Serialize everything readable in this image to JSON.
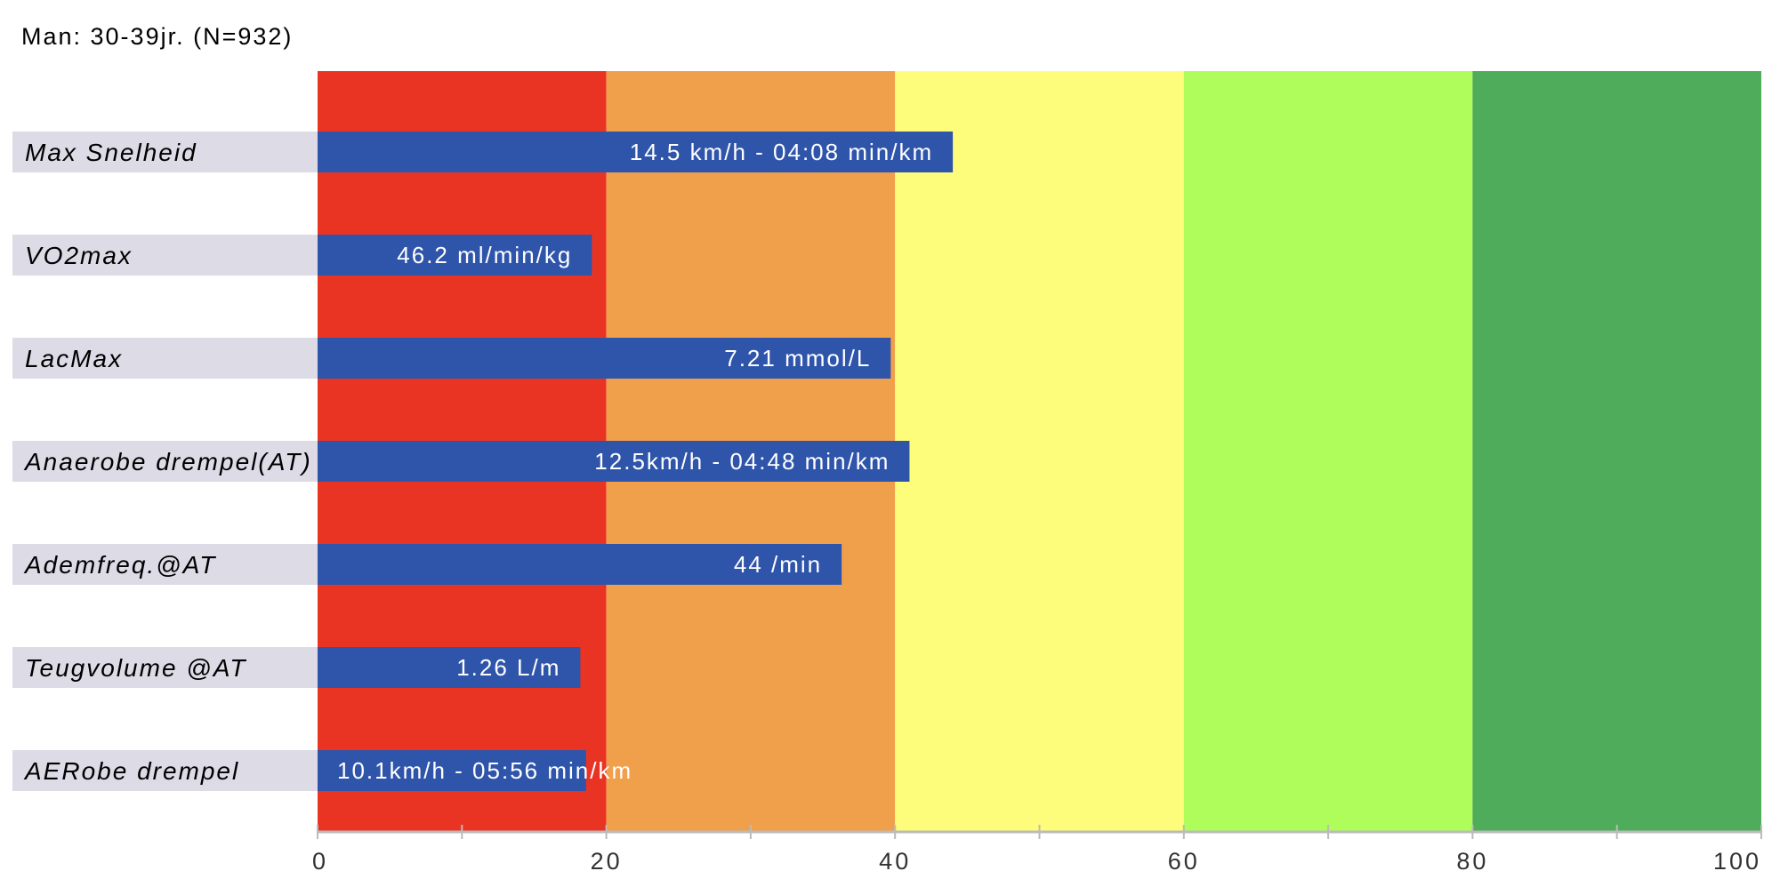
{
  "chart_data": {
    "type": "bar",
    "orientation": "horizontal",
    "title": "Man: 30-39jr. (N=932)",
    "xlabel": "",
    "ylabel": "",
    "xlim": [
      0,
      100
    ],
    "x_ticks": [
      0,
      20,
      40,
      60,
      80,
      100
    ],
    "grid": false,
    "legend": "none",
    "zones": [
      {
        "from": 0,
        "to": 20,
        "color": "#e93424"
      },
      {
        "from": 20,
        "to": 40,
        "color": "#f0a04b"
      },
      {
        "from": 40,
        "to": 60,
        "color": "#fdfd7b"
      },
      {
        "from": 60,
        "to": 80,
        "color": "#affd5b"
      },
      {
        "from": 80,
        "to": 100,
        "color": "#4eac5b"
      }
    ],
    "bar_color": "#2f55ab",
    "label_bg_color": "#dcdbe6",
    "categories": [
      "Max Snelheid",
      "VO2max",
      "LacMax",
      "Anaerobe drempel(AT)",
      "Ademfreq.@AT",
      "Teugvolume @AT",
      "AERobe drempel"
    ],
    "values": [
      44,
      19,
      39.7,
      41,
      36.3,
      18.2,
      18.6
    ],
    "value_labels": [
      "14.5 km/h - 04:08 min/km",
      "46.2 ml/min/kg",
      "7.21 mmol/L",
      "12.5km/h - 04:48 min/km",
      "44 /min",
      "1.26 L/m",
      "10.1km/h - 05:56 min/km"
    ]
  }
}
